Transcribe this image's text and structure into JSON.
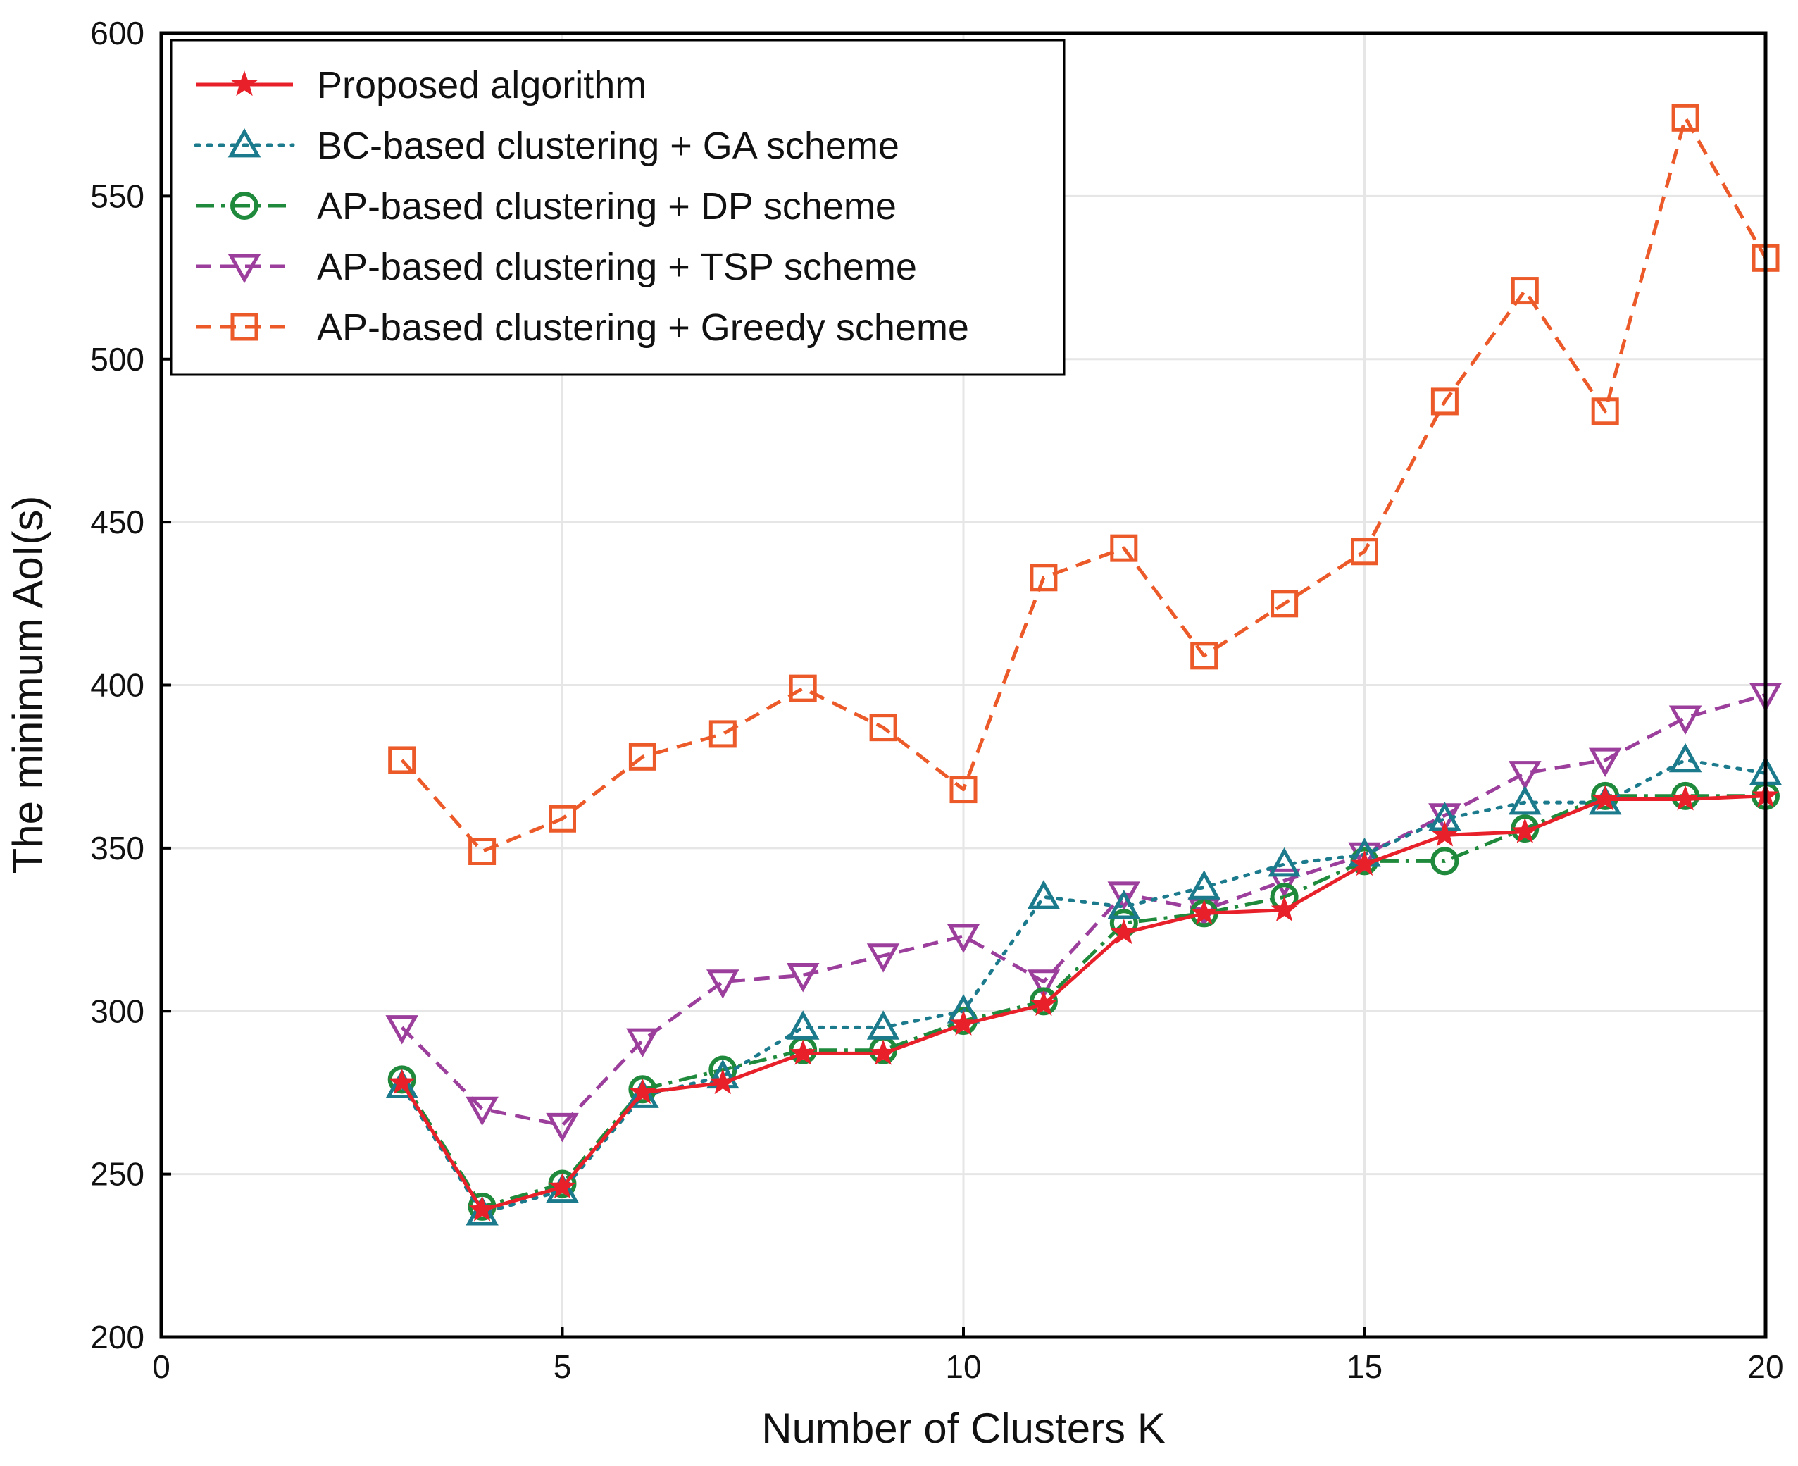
{
  "chart_data": {
    "type": "line",
    "xlabel": "Number of Clusters K",
    "ylabel": "The minimum AoI(s)",
    "xlim": [
      0,
      20
    ],
    "ylim": [
      200,
      600
    ],
    "xticks": [
      0,
      5,
      10,
      15,
      20
    ],
    "yticks": [
      200,
      250,
      300,
      350,
      400,
      450,
      500,
      550,
      600
    ],
    "grid": true,
    "legend_position": "top-left",
    "x": [
      3,
      4,
      5,
      6,
      7,
      8,
      9,
      10,
      11,
      12,
      13,
      14,
      15,
      16,
      17,
      18,
      19,
      20
    ],
    "series": [
      {
        "name": "Proposed algorithm",
        "color": "#e8202a",
        "line_style": "solid",
        "marker": "star",
        "values": [
          278,
          239,
          246,
          275,
          278,
          287,
          287,
          296,
          302,
          324,
          330,
          331,
          345,
          354,
          355,
          365,
          365,
          366
        ]
      },
      {
        "name": "BC-based clustering + GA scheme",
        "color": "#1b7a8c",
        "line_style": "dotted",
        "marker": "triangle-up",
        "values": [
          277,
          238,
          245,
          274,
          280,
          295,
          295,
          300,
          335,
          332,
          338,
          345,
          348,
          359,
          364,
          364,
          377,
          373
        ]
      },
      {
        "name": "AP-based clustering + DP scheme",
        "color": "#1f8a3b",
        "line_style": "dashdot",
        "marker": "circle",
        "values": [
          279,
          240,
          247,
          276,
          282,
          288,
          288,
          297,
          303,
          327,
          330,
          335,
          346,
          346,
          356,
          366,
          366,
          366
        ]
      },
      {
        "name": "AP-based clustering + TSP scheme",
        "color": "#9b3e9c",
        "line_style": "dashed",
        "marker": "triangle-down",
        "values": [
          295,
          270,
          265,
          291,
          309,
          311,
          317,
          323,
          309,
          336,
          331,
          340,
          348,
          360,
          373,
          377,
          390,
          397
        ]
      },
      {
        "name": "AP-based clustering + Greedy scheme",
        "color": "#ec5a2a",
        "line_style": "dashed",
        "marker": "square",
        "values": [
          377,
          349,
          359,
          378,
          385,
          399,
          387,
          368,
          433,
          442,
          409,
          425,
          441,
          487,
          521,
          484,
          574,
          531
        ]
      }
    ]
  }
}
